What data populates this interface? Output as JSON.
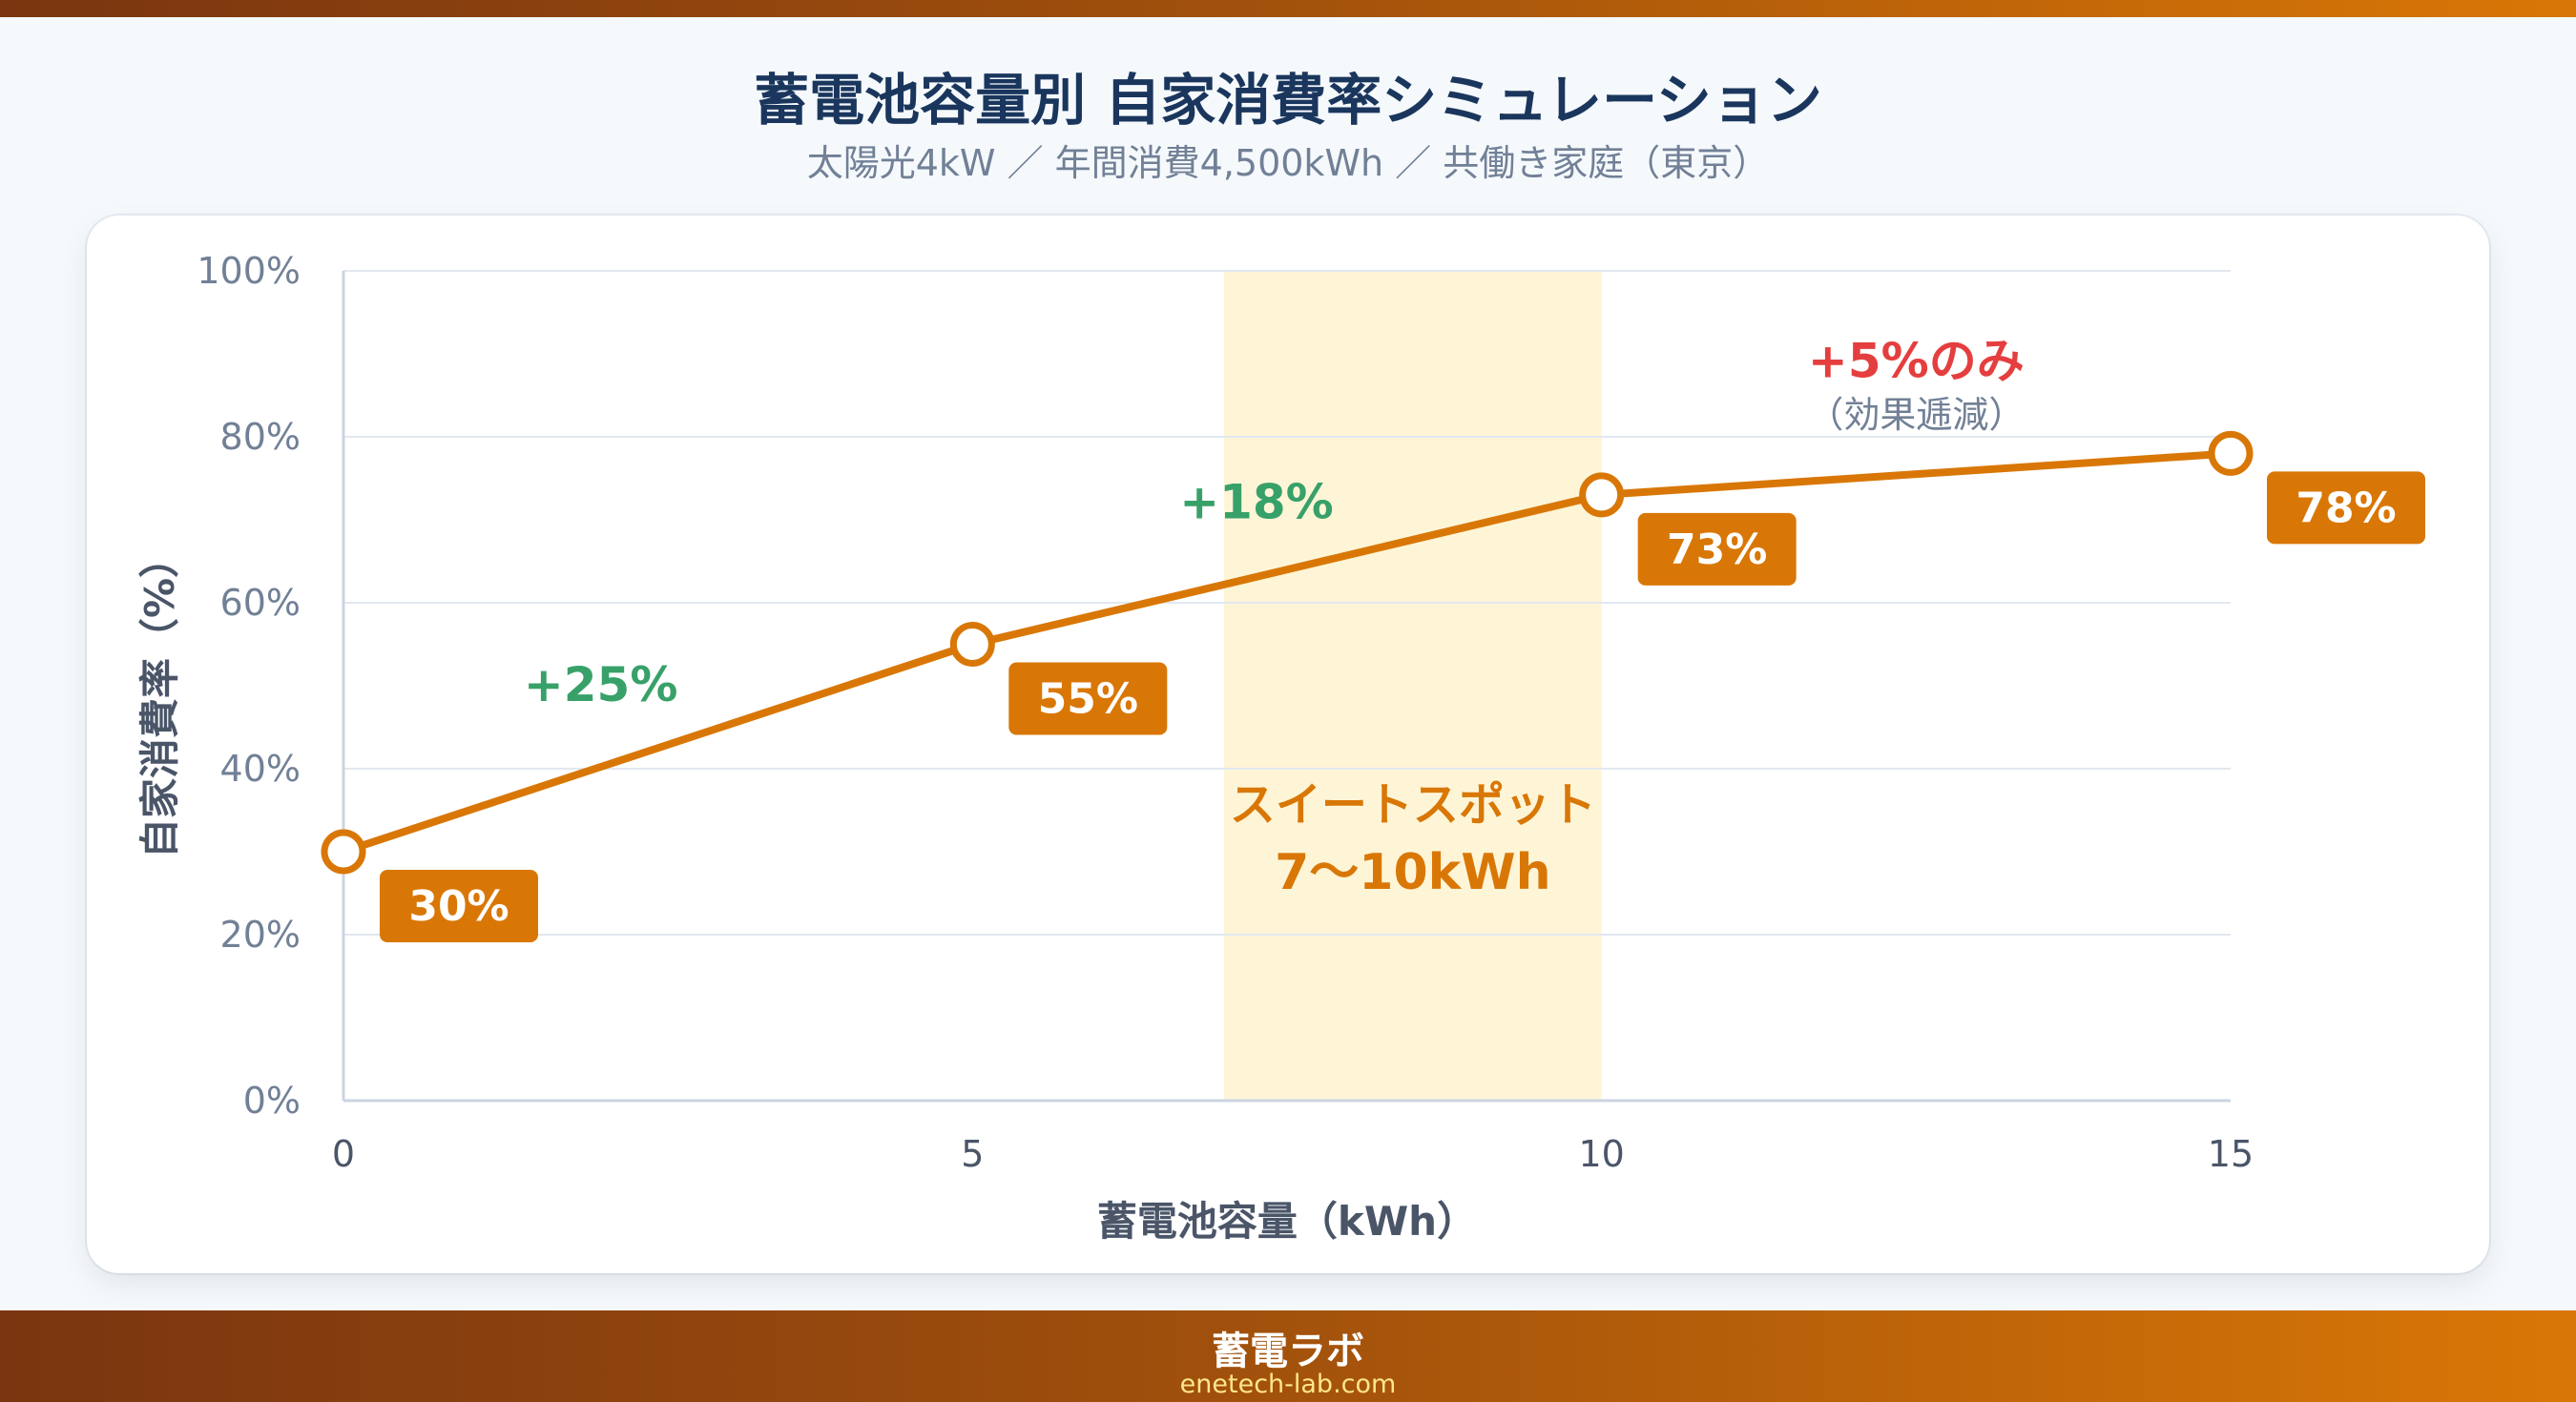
{
  "header": {
    "title": "蓄電池容量別 自家消費率シミュレーション",
    "subtitle": "太陽光4kW ／ 年間消費4,500kWh ／ 共働き家庭（東京）"
  },
  "footer": {
    "brand": "蓄電ラボ",
    "url": "enetech-lab.com"
  },
  "colors": {
    "line": "#d97706",
    "accent_green": "#38a169",
    "accent_red": "#e53e3e",
    "band": "#fef5d7",
    "title": "#1a365d"
  },
  "chart_data": {
    "type": "line",
    "xlabel": "蓄電池容量（kWh）",
    "ylabel": "自家消費率（%）",
    "xlim": [
      0,
      15
    ],
    "ylim": [
      0,
      100
    ],
    "xticks": [
      "0",
      "5",
      "10",
      "15"
    ],
    "xtick_values": [
      0,
      5,
      10,
      15
    ],
    "yticks": [
      "0%",
      "20%",
      "40%",
      "60%",
      "80%",
      "100%"
    ],
    "ytick_values": [
      0,
      20,
      40,
      60,
      80,
      100
    ],
    "grid": "horizontal",
    "x": [
      0,
      5,
      10,
      15
    ],
    "y": [
      30,
      55,
      73,
      78
    ],
    "data_labels": [
      "30%",
      "55%",
      "73%",
      "78%"
    ],
    "highlight_band": {
      "x_range": [
        7,
        10
      ],
      "label_line1": "スイートスポット",
      "label_line2": "7〜10kWh"
    },
    "annotations": [
      {
        "text": "+25%",
        "x": 2.5,
        "y": 50,
        "color": "green"
      },
      {
        "text": "+18%",
        "x": 7.5,
        "y": 72,
        "color": "green"
      },
      {
        "text": "+5%のみ",
        "x": 12.5,
        "y": 89,
        "color": "red"
      },
      {
        "text": "（効果逓減）",
        "x": 12.5,
        "y": 83,
        "color": "gray"
      }
    ]
  }
}
